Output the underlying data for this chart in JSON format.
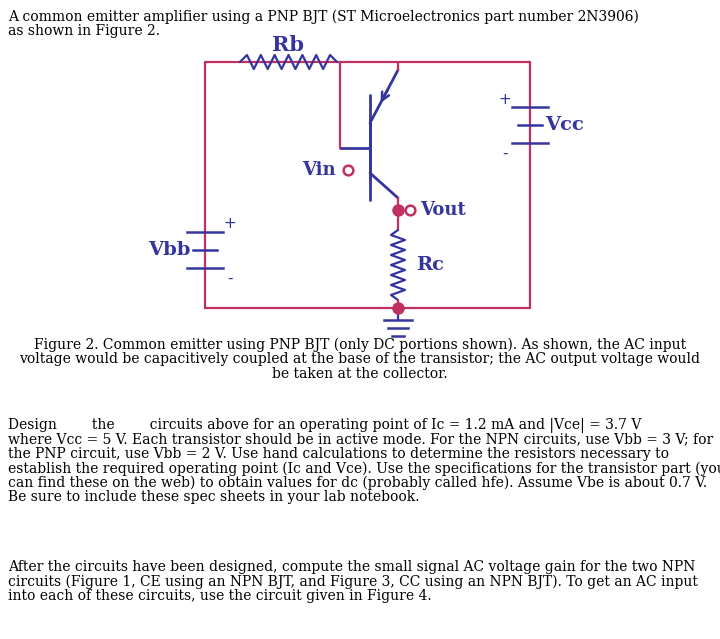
{
  "title1": "A common emitter amplifier using a PNP BJT (ST Microelectronics part number 2N3906)",
  "title2": "as shown in Figure 2.",
  "cap1": "Figure 2. Common emitter using PNP BJT (only DC portions shown). As shown, the AC input",
  "cap2": "voltage would be capacitively coupled at the base of the transistor; the AC output voltage would",
  "cap3": "be taken at the collector.",
  "b1l1": "Design        the        circuits above for an operating point of Ic = 1.2 mA and |Vce| = 3.7 V",
  "b1l2": "where Vcc = 5 V. Each transistor should be in active mode. For the NPN circuits, use Vbb = 3 V; for",
  "b1l3": "the PNP circuit, use Vbb = 2 V. Use hand calculations to determine the resistors necessary to",
  "b1l4": "establish the required operating point (Ic and Vce). Use the specifications for the transistor part (you",
  "b1l5": "can find these on the web) to obtain values for dc (probably called hfe). Assume Vbe is about 0.7 V.",
  "b1l6": "Be sure to include these spec sheets in your lab notebook.",
  "b2l1": "After the circuits have been designed, compute the small signal AC voltage gain for the two NPN",
  "b2l2": "circuits (Figure 1, CE using an NPN BJT, and Figure 3, CC using an NPN BJT). To get an AC input",
  "b2l3": "into each of these circuits, use the circuit given in Figure 4.",
  "lc": "#3535A0",
  "wc": "#C03060",
  "dc": "#C03060",
  "bg": "#FFFFFF"
}
